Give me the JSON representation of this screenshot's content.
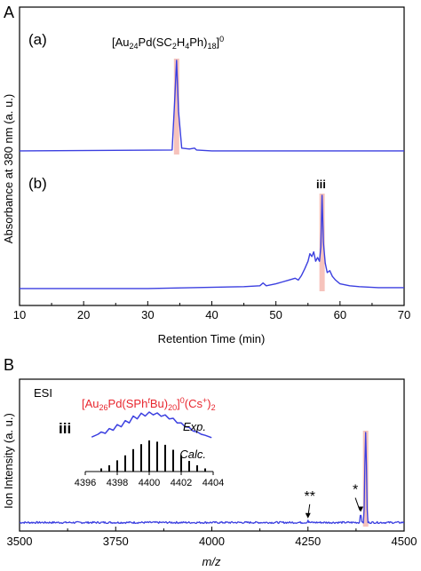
{
  "chart_data": [
    {
      "panel": "A",
      "type": "line",
      "xlabel": "Retention Time (min)",
      "ylabel": "Absorbance at 380 nm (a. u.)",
      "xlim": [
        10,
        70
      ],
      "xticks": [
        10,
        20,
        30,
        40,
        50,
        60,
        70
      ],
      "series_color": "#3b3fe0",
      "highlight_color": "#f4b9b0",
      "subplots": [
        {
          "label": "(a)",
          "annotation": {
            "parts": [
              {
                "t": "[Au",
                "s": "n"
              },
              {
                "t": "24",
                "s": "sub"
              },
              {
                "t": "Pd(SC",
                "s": "n"
              },
              {
                "t": "2",
                "s": "sub"
              },
              {
                "t": "H",
                "s": "n"
              },
              {
                "t": "4",
                "s": "sub"
              },
              {
                "t": "Ph)",
                "s": "n"
              },
              {
                "t": "18",
                "s": "sub"
              },
              {
                "t": "]",
                "s": "n"
              },
              {
                "t": "0",
                "s": "sup"
              }
            ]
          },
          "highlight_x": 34.5,
          "x": [
            10,
            33.8,
            34.2,
            34.5,
            34.8,
            35.3,
            36.5,
            37.3,
            37.6,
            40,
            70
          ],
          "y": [
            0.02,
            0.03,
            0.55,
            1.0,
            0.45,
            0.05,
            0.04,
            0.05,
            0.03,
            0.02,
            0.02
          ]
        },
        {
          "label": "(b)",
          "annotation_text": "iii",
          "highlight_x": 57.2,
          "x": [
            10,
            30,
            45,
            47.5,
            48,
            48.5,
            50,
            51,
            52,
            53,
            53.5,
            54,
            54.5,
            55,
            55.3,
            55.6,
            55.9,
            56.2,
            56.5,
            56.8,
            57.0,
            57.2,
            57.4,
            57.7,
            58.0,
            58.4,
            58.8,
            59.3,
            60,
            61.5,
            63,
            66,
            70
          ],
          "y": [
            0.01,
            0.01,
            0.03,
            0.04,
            0.07,
            0.04,
            0.06,
            0.08,
            0.1,
            0.12,
            0.1,
            0.15,
            0.22,
            0.3,
            0.38,
            0.35,
            0.4,
            0.3,
            0.34,
            0.3,
            0.45,
            1.0,
            0.5,
            0.28,
            0.18,
            0.2,
            0.14,
            0.1,
            0.06,
            0.04,
            0.03,
            0.02,
            0.02
          ]
        }
      ]
    },
    {
      "panel": "B",
      "type": "line",
      "xlabel": "m/z",
      "ylabel": "Ion Intensity (a. u.)",
      "xlim": [
        3500,
        4500
      ],
      "xticks": [
        3500,
        3750,
        4000,
        4250,
        4500
      ],
      "series_color": "#3b3fe0",
      "highlight_color": "#f4b9b0",
      "method_label": "ESI",
      "annotation_color": "#e8262e",
      "annotation": {
        "parts": [
          {
            "t": "[Au",
            "s": "n"
          },
          {
            "t": "26",
            "s": "sub"
          },
          {
            "t": "Pd(SPh",
            "s": "n"
          },
          {
            "t": "t",
            "s": "sup"
          },
          {
            "t": "Bu)",
            "s": "n"
          },
          {
            "t": "20",
            "s": "sub"
          },
          {
            "t": "]",
            "s": "n"
          },
          {
            "t": "0",
            "s": "sup"
          },
          {
            "t": "(Cs",
            "s": "n"
          },
          {
            "t": "+",
            "s": "sup"
          },
          {
            "t": ")",
            "s": "n"
          },
          {
            "t": "2",
            "s": "sub"
          }
        ]
      },
      "highlight_x": 4400,
      "peaks": [
        {
          "x": 4400,
          "y": 1.0
        },
        {
          "x": 4387,
          "y": 0.12,
          "marker": "*"
        },
        {
          "x": 4250,
          "y": 0.05,
          "marker": "**"
        },
        {
          "x": 4210,
          "y": 0.03
        },
        {
          "x": 4270,
          "y": 0.02
        },
        {
          "x": 4300,
          "y": 0.015
        },
        {
          "x": 4040,
          "y": 0.02
        }
      ],
      "inset": {
        "label": "iii",
        "xlim": [
          4396,
          4404
        ],
        "xticks": [
          4396,
          4398,
          4400,
          4402,
          4404
        ],
        "exp_label": "Exp.",
        "calc_label": "Calc.",
        "calc_x": [
          4397,
          4397.5,
          4398,
          4398.5,
          4399,
          4399.5,
          4400,
          4400.5,
          4401,
          4401.5,
          4402,
          4402.5,
          4403,
          4403.5
        ],
        "calc_y": [
          0.1,
          0.2,
          0.36,
          0.52,
          0.72,
          0.88,
          1.0,
          0.96,
          0.86,
          0.7,
          0.52,
          0.34,
          0.2,
          0.1
        ],
        "exp_x": [
          4396.4,
          4396.8,
          4397.0,
          4397.25,
          4397.5,
          4397.75,
          4398.0,
          4398.25,
          4398.5,
          4398.75,
          4399.0,
          4399.25,
          4399.5,
          4399.75,
          4400.0,
          4400.25,
          4400.5,
          4400.75,
          4401.0,
          4401.25,
          4401.5,
          4401.75,
          4402.0,
          4402.25,
          4402.5,
          4402.75,
          4403.0,
          4403.25,
          4403.5,
          4403.9
        ],
        "exp_y": [
          0.12,
          0.22,
          0.3,
          0.25,
          0.42,
          0.36,
          0.56,
          0.48,
          0.7,
          0.62,
          0.86,
          0.76,
          0.96,
          0.86,
          1.0,
          0.9,
          0.97,
          0.85,
          0.9,
          0.76,
          0.78,
          0.62,
          0.62,
          0.48,
          0.46,
          0.33,
          0.3,
          0.22,
          0.18,
          0.1
        ]
      }
    }
  ]
}
